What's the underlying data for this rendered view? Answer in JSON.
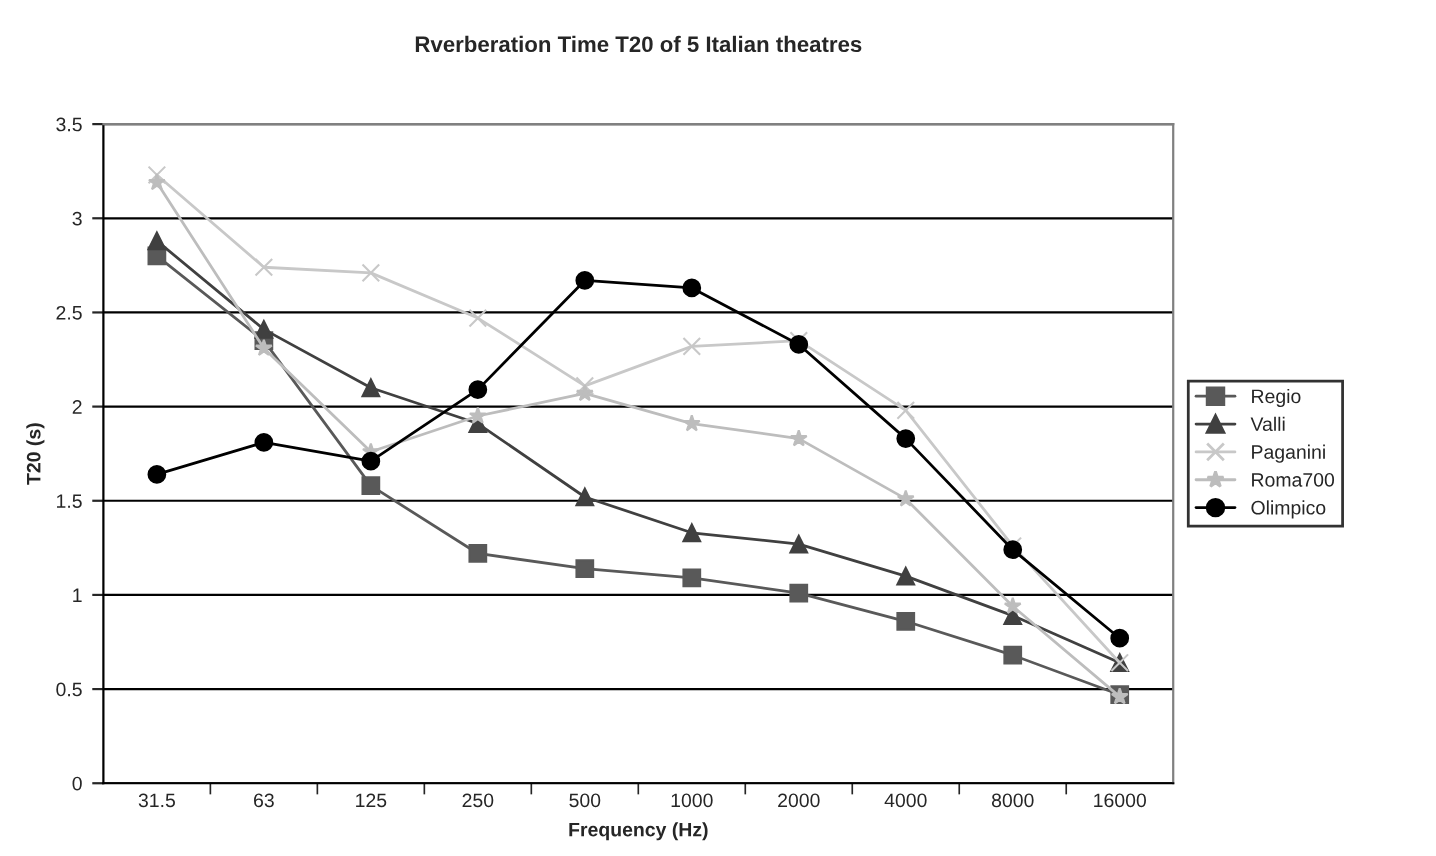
{
  "chart_data": {
    "type": "line",
    "title": "Rverberation Time T20 of 5 Italian theatres",
    "xlabel": "Frequency (Hz)",
    "ylabel": "T20 (s)",
    "categories": [
      "31.5",
      "63",
      "125",
      "250",
      "500",
      "1000",
      "2000",
      "4000",
      "8000",
      "16000"
    ],
    "ylim": [
      0,
      3.5
    ],
    "yticks": [
      0,
      0.5,
      1,
      1.5,
      2,
      2.5,
      3,
      3.5
    ],
    "grid": "y",
    "legend": "right",
    "series": [
      {
        "name": "Regio",
        "color": "#595959",
        "marker": "square",
        "values": [
          2.8,
          2.35,
          1.58,
          1.22,
          1.14,
          1.09,
          1.01,
          0.86,
          0.68,
          0.47
        ]
      },
      {
        "name": "Valli",
        "color": "#404040",
        "marker": "triangle",
        "values": [
          2.88,
          2.41,
          2.1,
          1.91,
          1.52,
          1.33,
          1.27,
          1.1,
          0.89,
          0.64
        ]
      },
      {
        "name": "Paganini",
        "color": "#c8c8c8",
        "marker": "cross",
        "values": [
          3.23,
          2.74,
          2.71,
          2.47,
          2.11,
          2.32,
          2.35,
          1.98,
          1.26,
          0.64
        ]
      },
      {
        "name": "Roma700",
        "color": "#bdbdbd",
        "marker": "star",
        "values": [
          3.19,
          2.31,
          1.76,
          1.95,
          2.07,
          1.91,
          1.83,
          1.51,
          0.94,
          0.46
        ]
      },
      {
        "name": "Olimpico",
        "color": "#000000",
        "marker": "circle",
        "values": [
          1.64,
          1.81,
          1.71,
          2.09,
          2.67,
          2.63,
          2.33,
          1.83,
          1.24,
          0.77
        ]
      }
    ]
  }
}
